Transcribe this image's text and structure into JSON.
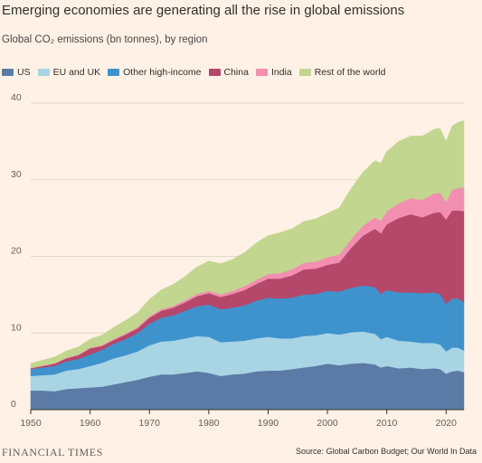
{
  "header": {
    "title": "Emerging economies are generating all the rise in global emissions",
    "subtitle": "Global CO₂ emissions (bn tonnes), by region"
  },
  "footer": {
    "logo": "FINANCIAL TIMES",
    "source": "Source: Global Carbon Budget; Our World In Data"
  },
  "chart_data": {
    "type": "area",
    "stacked": true,
    "title": "Emerging economies are generating all the rise in global emissions",
    "subtitle": "Global CO₂ emissions (bn tonnes), by region",
    "xlim": [
      1950,
      2023
    ],
    "ylim": [
      0,
      40
    ],
    "x_ticks": [
      1950,
      1960,
      1970,
      1980,
      1990,
      2000,
      2010,
      2020
    ],
    "y_ticks": [
      0,
      10,
      20,
      30,
      40
    ],
    "grid": "horizontal",
    "legend_position": "top-left",
    "x": [
      1950,
      1952,
      1954,
      1956,
      1958,
      1960,
      1962,
      1964,
      1966,
      1968,
      1970,
      1972,
      1974,
      1976,
      1978,
      1980,
      1982,
      1984,
      1986,
      1988,
      1990,
      1992,
      1994,
      1996,
      1998,
      2000,
      2002,
      2004,
      2006,
      2008,
      2009,
      2010,
      2012,
      2014,
      2016,
      2018,
      2019,
      2020,
      2021,
      2022,
      2023
    ],
    "series": [
      {
        "name": "US",
        "color": "#5b7ba6",
        "values": [
          2.5,
          2.5,
          2.4,
          2.7,
          2.8,
          2.9,
          3.0,
          3.3,
          3.6,
          3.9,
          4.3,
          4.6,
          4.6,
          4.8,
          5.0,
          4.8,
          4.4,
          4.6,
          4.7,
          5.0,
          5.1,
          5.1,
          5.3,
          5.5,
          5.7,
          6.0,
          5.8,
          6.0,
          6.1,
          5.9,
          5.5,
          5.7,
          5.4,
          5.5,
          5.3,
          5.4,
          5.3,
          4.7,
          5.0,
          5.1,
          4.9
        ]
      },
      {
        "name": "EU and UK",
        "color": "#a8d4e4",
        "values": [
          1.9,
          2.0,
          2.2,
          2.4,
          2.5,
          2.8,
          3.1,
          3.4,
          3.5,
          3.7,
          4.1,
          4.3,
          4.4,
          4.5,
          4.6,
          4.7,
          4.4,
          4.3,
          4.3,
          4.3,
          4.4,
          4.2,
          4.0,
          4.1,
          4.0,
          4.0,
          4.0,
          4.1,
          4.1,
          4.0,
          3.7,
          3.8,
          3.6,
          3.4,
          3.4,
          3.3,
          3.2,
          2.9,
          3.1,
          3.0,
          2.8
        ]
      },
      {
        "name": "Other high-income",
        "color": "#3e93cd",
        "values": [
          0.9,
          1.0,
          1.1,
          1.2,
          1.3,
          1.5,
          1.7,
          1.9,
          2.1,
          2.4,
          2.8,
          3.1,
          3.3,
          3.6,
          3.9,
          4.2,
          4.3,
          4.4,
          4.6,
          4.9,
          5.1,
          5.2,
          5.3,
          5.4,
          5.4,
          5.5,
          5.6,
          5.8,
          6.0,
          6.1,
          5.9,
          6.1,
          6.3,
          6.4,
          6.5,
          6.6,
          6.6,
          6.2,
          6.4,
          6.4,
          6.3
        ]
      },
      {
        "name": "China",
        "color": "#b5476b",
        "values": [
          0.1,
          0.2,
          0.3,
          0.4,
          0.5,
          0.8,
          0.5,
          0.5,
          0.6,
          0.6,
          0.8,
          0.9,
          1.0,
          1.1,
          1.3,
          1.5,
          1.6,
          1.8,
          2.0,
          2.2,
          2.5,
          2.6,
          2.9,
          3.3,
          3.3,
          3.4,
          3.8,
          5.2,
          6.5,
          7.6,
          7.9,
          8.6,
          9.7,
          10.2,
          9.9,
          10.4,
          10.7,
          11.0,
          11.5,
          11.5,
          11.9
        ]
      },
      {
        "name": "India",
        "color": "#f28fb0",
        "values": [
          0.05,
          0.05,
          0.06,
          0.07,
          0.08,
          0.1,
          0.12,
          0.14,
          0.16,
          0.18,
          0.2,
          0.22,
          0.25,
          0.28,
          0.3,
          0.3,
          0.35,
          0.4,
          0.5,
          0.55,
          0.6,
          0.7,
          0.8,
          0.85,
          0.9,
          1.0,
          1.05,
          1.15,
          1.3,
          1.5,
          1.65,
          1.7,
          1.9,
          2.1,
          2.3,
          2.5,
          2.5,
          2.3,
          2.7,
          2.9,
          3.1
        ]
      },
      {
        "name": "Rest of the world",
        "color": "#c2d68f",
        "values": [
          0.6,
          0.7,
          0.8,
          0.9,
          1.0,
          1.1,
          1.3,
          1.5,
          1.7,
          1.9,
          2.2,
          2.5,
          2.8,
          3.1,
          3.5,
          3.9,
          4.0,
          4.1,
          4.4,
          4.8,
          5.0,
          5.3,
          5.3,
          5.4,
          5.6,
          5.7,
          6.1,
          6.6,
          7.0,
          7.4,
          7.5,
          7.8,
          8.1,
          8.1,
          8.3,
          8.4,
          8.4,
          7.9,
          8.3,
          8.6,
          8.7
        ]
      }
    ]
  }
}
